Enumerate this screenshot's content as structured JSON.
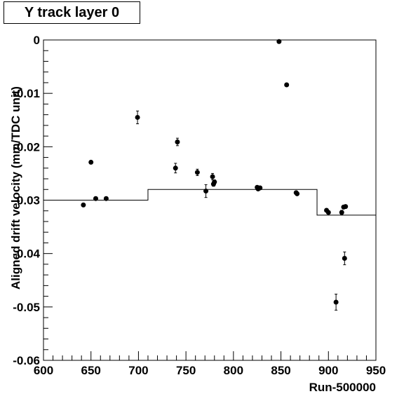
{
  "chart_data": {
    "type": "scatter",
    "title": "Y track layer 0",
    "xlabel": "Run-500000",
    "ylabel": "Aligned drift velocity (mm/TDC unit)",
    "xlim": [
      600,
      950
    ],
    "ylim": [
      -0.06,
      0
    ],
    "xticks": [
      600,
      650,
      700,
      750,
      800,
      850,
      900,
      950
    ],
    "xtick_labels": [
      "600",
      "650",
      "700",
      "750",
      "800",
      "850",
      "900",
      "950"
    ],
    "yticks": [
      0,
      -0.01,
      -0.02,
      -0.03,
      -0.04,
      -0.05,
      -0.06
    ],
    "ytick_labels": [
      "0",
      "-0.01",
      "-0.02",
      "-0.03",
      "-0.04",
      "-0.05",
      "-0.06"
    ],
    "series": [
      {
        "type": "points",
        "points": [
          {
            "x": 642,
            "y": -0.0309,
            "err": 0.0003
          },
          {
            "x": 650,
            "y": -0.0229,
            "err": 0.0003
          },
          {
            "x": 655,
            "y": -0.0297,
            "err": 0.0003
          },
          {
            "x": 666,
            "y": -0.0297,
            "err": 0.0003
          },
          {
            "x": 699,
            "y": -0.0145,
            "err": 0.0012
          },
          {
            "x": 739,
            "y": -0.024,
            "err": 0.0009
          },
          {
            "x": 741,
            "y": -0.0191,
            "err": 0.0007
          },
          {
            "x": 762,
            "y": -0.0248,
            "err": 0.0006
          },
          {
            "x": 771,
            "y": -0.0283,
            "err": 0.0012
          },
          {
            "x": 778,
            "y": -0.0256,
            "err": 0.0006
          },
          {
            "x": 779,
            "y": -0.027,
            "err": 0.0004
          },
          {
            "x": 780,
            "y": -0.0266,
            "err": 0.0004
          },
          {
            "x": 825,
            "y": -0.0276,
            "err": 0.0003
          },
          {
            "x": 826,
            "y": -0.0279,
            "err": 0.0003
          },
          {
            "x": 828,
            "y": -0.0277,
            "err": 0.0003
          },
          {
            "x": 848,
            "y": -0.0003,
            "err": 0.0003
          },
          {
            "x": 856,
            "y": -0.0084,
            "err": 0.0003
          },
          {
            "x": 866,
            "y": -0.0286,
            "err": 0.0003
          },
          {
            "x": 867,
            "y": -0.0288,
            "err": 0.0003
          },
          {
            "x": 898,
            "y": -0.0319,
            "err": 0.0003
          },
          {
            "x": 900,
            "y": -0.0323,
            "err": 0.0003
          },
          {
            "x": 908,
            "y": -0.0491,
            "err": 0.0015
          },
          {
            "x": 914,
            "y": -0.0323,
            "err": 0.0004
          },
          {
            "x": 916,
            "y": -0.0313,
            "err": 0.0003
          },
          {
            "x": 917,
            "y": -0.0409,
            "err": 0.0012
          },
          {
            "x": 918,
            "y": -0.0312,
            "err": 0.0003
          }
        ]
      },
      {
        "type": "step",
        "segments": [
          {
            "x0": 600,
            "x1": 710,
            "y": -0.03
          },
          {
            "x0": 710,
            "x1": 888,
            "y": -0.028
          },
          {
            "x0": 888,
            "x1": 950,
            "y": -0.0328
          }
        ]
      }
    ]
  }
}
